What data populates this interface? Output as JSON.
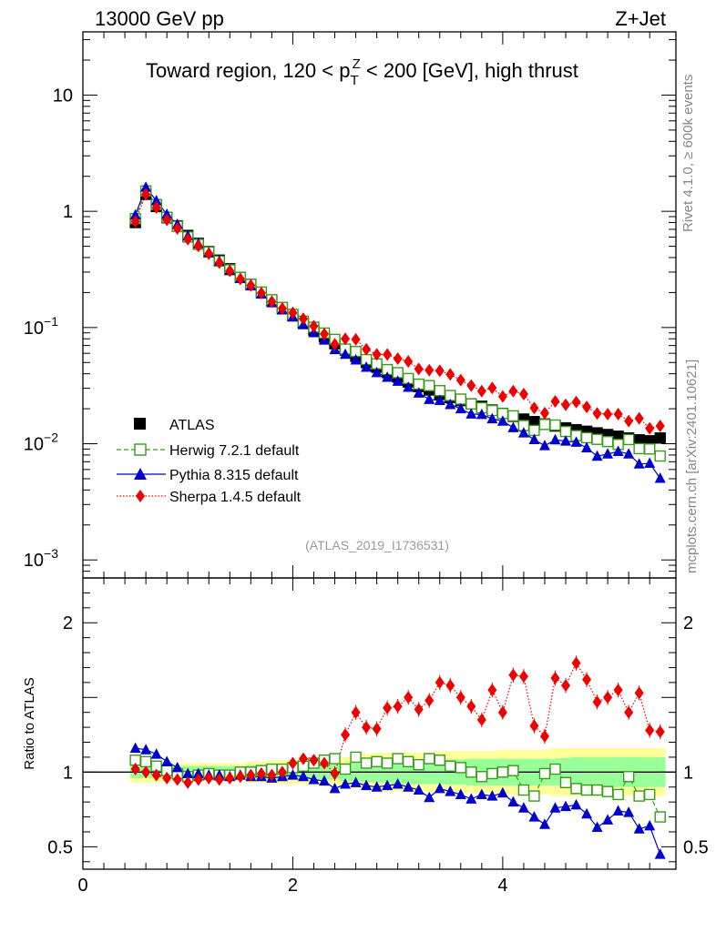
{
  "header": {
    "left_title": "13000 GeV pp",
    "right_title": "Z+Jet"
  },
  "side_texts": {
    "rivet": "Rivet 4.1.0, ≥ 600k events",
    "mcplots": "mcplots.cern.ch [arXiv:2401.10621]"
  },
  "colors": {
    "atlas": "#000000",
    "herwig": "#3a9a1a",
    "pythia": "#0000cc",
    "sherpa": "#ee0000",
    "band_yellow": "#ffff99",
    "band_green": "#99ff99"
  },
  "chart_data": {
    "type": "scatter",
    "title_parts": {
      "prefix": "Toward region, 120 < p",
      "sub": "T",
      "sup": "Z",
      "suffix": " < 200 [GeV], high thrust"
    },
    "analysis_tag": "(ATLAS_2019_I1736531)",
    "xlim": [
      0,
      5.65
    ],
    "x_ticks": [
      "0",
      "2",
      "4"
    ],
    "main": {
      "yscale": "log",
      "ylim": [
        0.0007,
        35
      ],
      "y_tick_labels": [
        {
          "value": 10,
          "mantissa": "10",
          "exp": ""
        },
        {
          "value": 1,
          "mantissa": "1",
          "exp": ""
        },
        {
          "value": 0.1,
          "mantissa": "10",
          "exp": "−1"
        },
        {
          "value": 0.01,
          "mantissa": "10",
          "exp": "−2"
        },
        {
          "value": 0.001,
          "mantissa": "10",
          "exp": "−3"
        }
      ]
    },
    "ratio": {
      "ylabel": "Ratio to ATLAS",
      "ylim": [
        0.35,
        2.3
      ],
      "y_tick_labels": [
        "2",
        "1",
        "0.5"
      ]
    },
    "legend": [
      {
        "key": "atlas",
        "label": "ATLAS"
      },
      {
        "key": "herwig",
        "label": "Herwig 7.2.1 default"
      },
      {
        "key": "pythia",
        "label": "Pythia 8.315 default"
      },
      {
        "key": "sherpa",
        "label": "Sherpa 1.4.5 default"
      }
    ],
    "x": [
      0.5,
      0.6,
      0.7,
      0.8,
      0.9,
      1.0,
      1.1,
      1.2,
      1.3,
      1.4,
      1.5,
      1.6,
      1.7,
      1.8,
      1.9,
      2.0,
      2.1,
      2.2,
      2.3,
      2.4,
      2.5,
      2.6,
      2.7,
      2.8,
      2.9,
      3.0,
      3.1,
      3.2,
      3.3,
      3.4,
      3.5,
      3.6,
      3.7,
      3.8,
      3.9,
      4.0,
      4.1,
      4.2,
      4.3,
      4.4,
      4.5,
      4.6,
      4.7,
      4.8,
      4.9,
      5.0,
      5.1,
      5.2,
      5.3,
      5.4,
      5.5
    ],
    "atlas": [
      0.8,
      1.4,
      1.1,
      0.88,
      0.75,
      0.62,
      0.53,
      0.45,
      0.38,
      0.32,
      0.27,
      0.235,
      0.2,
      0.17,
      0.146,
      0.126,
      0.109,
      0.095,
      0.083,
      0.0725,
      0.064,
      0.0565,
      0.05,
      0.0455,
      0.041,
      0.0375,
      0.034,
      0.031,
      0.029,
      0.0265,
      0.025,
      0.0235,
      0.022,
      0.021,
      0.0195,
      0.0182,
      0.0172,
      0.0163,
      0.0155,
      0.0148,
      0.0142,
      0.0137,
      0.0132,
      0.0128,
      0.0124,
      0.012,
      0.0116,
      0.0112,
      0.0108,
      0.0106,
      0.0112
    ],
    "ratio_herwig": [
      1.08,
      1.07,
      1.04,
      1.01,
      0.99,
      0.97,
      0.98,
      0.99,
      0.98,
      0.98,
      1.0,
      1.0,
      1.01,
      1.02,
      1.02,
      1.03,
      1.04,
      1.06,
      1.08,
      1.09,
      1.02,
      1.1,
      1.06,
      1.07,
      1.06,
      1.09,
      1.07,
      1.05,
      1.09,
      1.08,
      1.04,
      1.03,
      1.0,
      0.97,
      0.99,
      1.0,
      1.01,
      0.88,
      0.84,
      0.99,
      1.02,
      0.93,
      0.89,
      0.88,
      0.88,
      0.87,
      0.85,
      0.97,
      0.84,
      0.85,
      0.7
    ],
    "ratio_pythia": [
      1.16,
      1.15,
      1.12,
      1.07,
      1.03,
      0.99,
      0.99,
      0.98,
      0.98,
      0.97,
      0.98,
      0.97,
      0.97,
      0.96,
      0.97,
      0.98,
      0.97,
      0.95,
      0.94,
      0.89,
      0.92,
      0.93,
      0.91,
      0.9,
      0.91,
      0.92,
      0.9,
      0.88,
      0.83,
      0.89,
      0.87,
      0.85,
      0.82,
      0.85,
      0.84,
      0.86,
      0.8,
      0.76,
      0.7,
      0.65,
      0.76,
      0.77,
      0.78,
      0.72,
      0.63,
      0.68,
      0.74,
      0.73,
      0.62,
      0.64,
      0.45
    ],
    "ratio_sherpa": [
      1.02,
      1.0,
      0.98,
      0.96,
      0.95,
      0.93,
      0.95,
      0.96,
      0.95,
      0.96,
      0.97,
      0.98,
      0.99,
      0.98,
      1.0,
      1.06,
      1.09,
      1.08,
      1.06,
      0.99,
      1.25,
      1.4,
      1.3,
      1.29,
      1.43,
      1.44,
      1.5,
      1.42,
      1.48,
      1.6,
      1.58,
      1.5,
      1.44,
      1.35,
      1.55,
      1.4,
      1.65,
      1.64,
      1.31,
      1.24,
      1.63,
      1.58,
      1.73,
      1.62,
      1.47,
      1.5,
      1.55,
      1.4,
      1.53,
      1.28,
      1.27
    ],
    "band_inner": [
      0.04,
      0.04,
      0.04,
      0.04,
      0.04,
      0.04,
      0.04,
      0.04,
      0.04,
      0.04,
      0.04,
      0.045,
      0.05,
      0.05,
      0.05,
      0.05,
      0.05,
      0.05,
      0.05,
      0.05,
      0.06,
      0.06,
      0.065,
      0.07,
      0.07,
      0.075,
      0.08,
      0.08,
      0.08,
      0.08,
      0.085,
      0.085,
      0.09,
      0.09,
      0.09,
      0.09,
      0.09,
      0.09,
      0.09,
      0.09,
      0.09,
      0.095,
      0.1,
      0.1,
      0.1,
      0.1,
      0.1,
      0.1,
      0.1,
      0.1,
      0.1
    ],
    "band_outer": [
      0.07,
      0.07,
      0.07,
      0.06,
      0.06,
      0.06,
      0.06,
      0.06,
      0.06,
      0.06,
      0.06,
      0.07,
      0.07,
      0.08,
      0.08,
      0.08,
      0.08,
      0.09,
      0.09,
      0.09,
      0.1,
      0.11,
      0.12,
      0.13,
      0.13,
      0.13,
      0.13,
      0.13,
      0.13,
      0.14,
      0.14,
      0.14,
      0.14,
      0.14,
      0.14,
      0.15,
      0.15,
      0.15,
      0.15,
      0.15,
      0.16,
      0.16,
      0.16,
      0.16,
      0.16,
      0.16,
      0.16,
      0.16,
      0.16,
      0.16,
      0.16
    ]
  }
}
